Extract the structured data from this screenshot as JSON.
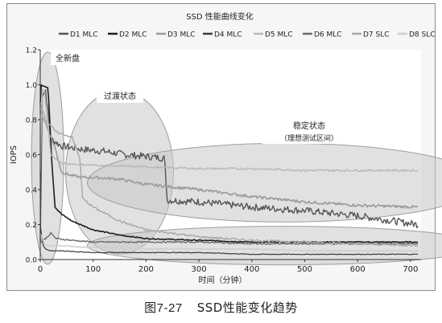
{
  "caption": {
    "number": "图7-27",
    "text": "SSD性能变化趋势"
  },
  "chart_data": {
    "type": "line",
    "title": "SSD 性能曲线变化",
    "xlabel": "时间（分钟）",
    "ylabel": "IOPS",
    "xlim": [
      0,
      720
    ],
    "ylim": [
      0,
      1.2
    ],
    "xticks": [
      0,
      100,
      200,
      300,
      400,
      500,
      600,
      700
    ],
    "yticks": [
      0.0,
      0.2,
      0.4,
      0.6,
      0.8,
      1.0,
      1.2
    ],
    "ytick_labels": [
      "0.0",
      "0.2",
      "0.4",
      "0.6",
      "0.8",
      "1.0",
      "1.2"
    ],
    "grid": "none",
    "legend_position": "top",
    "annotations": [
      {
        "label": "全新盘",
        "sublabel": ""
      },
      {
        "label": "过渡状态",
        "sublabel": ""
      },
      {
        "label": "稳定状态",
        "sublabel": "（理想测试区间）"
      }
    ],
    "series": [
      {
        "name": "D1 MLC",
        "color": "#555555",
        "width": 1.4,
        "x": [
          0,
          4,
          10,
          20,
          40,
          80,
          120,
          160,
          200,
          235,
          240,
          300,
          400,
          500,
          600,
          715
        ],
        "y": [
          0.1,
          0.95,
          0.97,
          0.69,
          0.65,
          0.63,
          0.62,
          0.6,
          0.59,
          0.58,
          0.34,
          0.33,
          0.3,
          0.28,
          0.25,
          0.2
        ],
        "noise": 0.02
      },
      {
        "name": "D2 MLC",
        "color": "#1e1e1e",
        "width": 1.6,
        "x": [
          0,
          2,
          15,
          22,
          28,
          40,
          60,
          100,
          150,
          200,
          300,
          400,
          500,
          600,
          715
        ],
        "y": [
          0.9,
          1.0,
          0.98,
          0.55,
          0.3,
          0.26,
          0.22,
          0.17,
          0.14,
          0.12,
          0.11,
          0.1,
          0.1,
          0.1,
          0.1
        ],
        "noise": 0.003
      },
      {
        "name": "D3 MLC",
        "color": "#9a9a9a",
        "width": 1.6,
        "x": [
          0,
          10,
          30,
          40,
          60,
          80,
          100,
          150,
          200,
          300,
          400,
          500,
          600,
          715
        ],
        "y": [
          0.85,
          0.78,
          0.62,
          0.5,
          0.48,
          0.47,
          0.47,
          0.46,
          0.43,
          0.4,
          0.36,
          0.33,
          0.31,
          0.3
        ],
        "noise": 0.008
      },
      {
        "name": "D4 MLC",
        "color": "#3a3a3a",
        "width": 1.2,
        "x": [
          0,
          5,
          10,
          20,
          40,
          100,
          200,
          300,
          400,
          500,
          600,
          715
        ],
        "y": [
          0.2,
          0.08,
          0.06,
          0.05,
          0.05,
          0.04,
          0.04,
          0.04,
          0.03,
          0.03,
          0.03,
          0.03
        ],
        "noise": 0.002
      },
      {
        "name": "D5 MLC",
        "color": "#b8b8b8",
        "width": 1.4,
        "x": [
          0,
          4,
          8,
          20,
          40,
          100,
          200,
          300,
          400,
          500,
          600,
          715
        ],
        "y": [
          0.5,
          0.98,
          0.96,
          0.6,
          0.55,
          0.54,
          0.53,
          0.52,
          0.52,
          0.51,
          0.51,
          0.51
        ],
        "noise": 0.006
      },
      {
        "name": "D6 MLC",
        "color": "#6a6a6a",
        "width": 1.4,
        "x": [
          0,
          10,
          20,
          30,
          60,
          100,
          200,
          300,
          400,
          500,
          600,
          715
        ],
        "y": [
          0.1,
          0.12,
          0.15,
          0.12,
          0.11,
          0.1,
          0.1,
          0.1,
          0.09,
          0.09,
          0.09,
          0.09
        ],
        "noise": 0.004
      },
      {
        "name": "D7 SLC",
        "color": "#a8a8a8",
        "width": 1.4,
        "x": [
          0,
          10,
          30,
          60,
          75,
          80,
          100,
          150,
          200,
          300,
          400,
          500,
          600,
          715
        ],
        "y": [
          0.9,
          0.8,
          0.73,
          0.7,
          0.58,
          0.35,
          0.3,
          0.22,
          0.17,
          0.13,
          0.11,
          0.1,
          0.09,
          0.08
        ],
        "noise": 0.006
      },
      {
        "name": "D8 SLC",
        "color": "#cfcfcf",
        "width": 1.6,
        "x": [
          0,
          10,
          40,
          80,
          120,
          200,
          300,
          400,
          500,
          600,
          715
        ],
        "y": [
          0.15,
          0.08,
          0.08,
          0.07,
          0.07,
          0.06,
          0.06,
          0.06,
          0.05,
          0.05,
          0.05
        ],
        "noise": 0.002
      }
    ]
  }
}
